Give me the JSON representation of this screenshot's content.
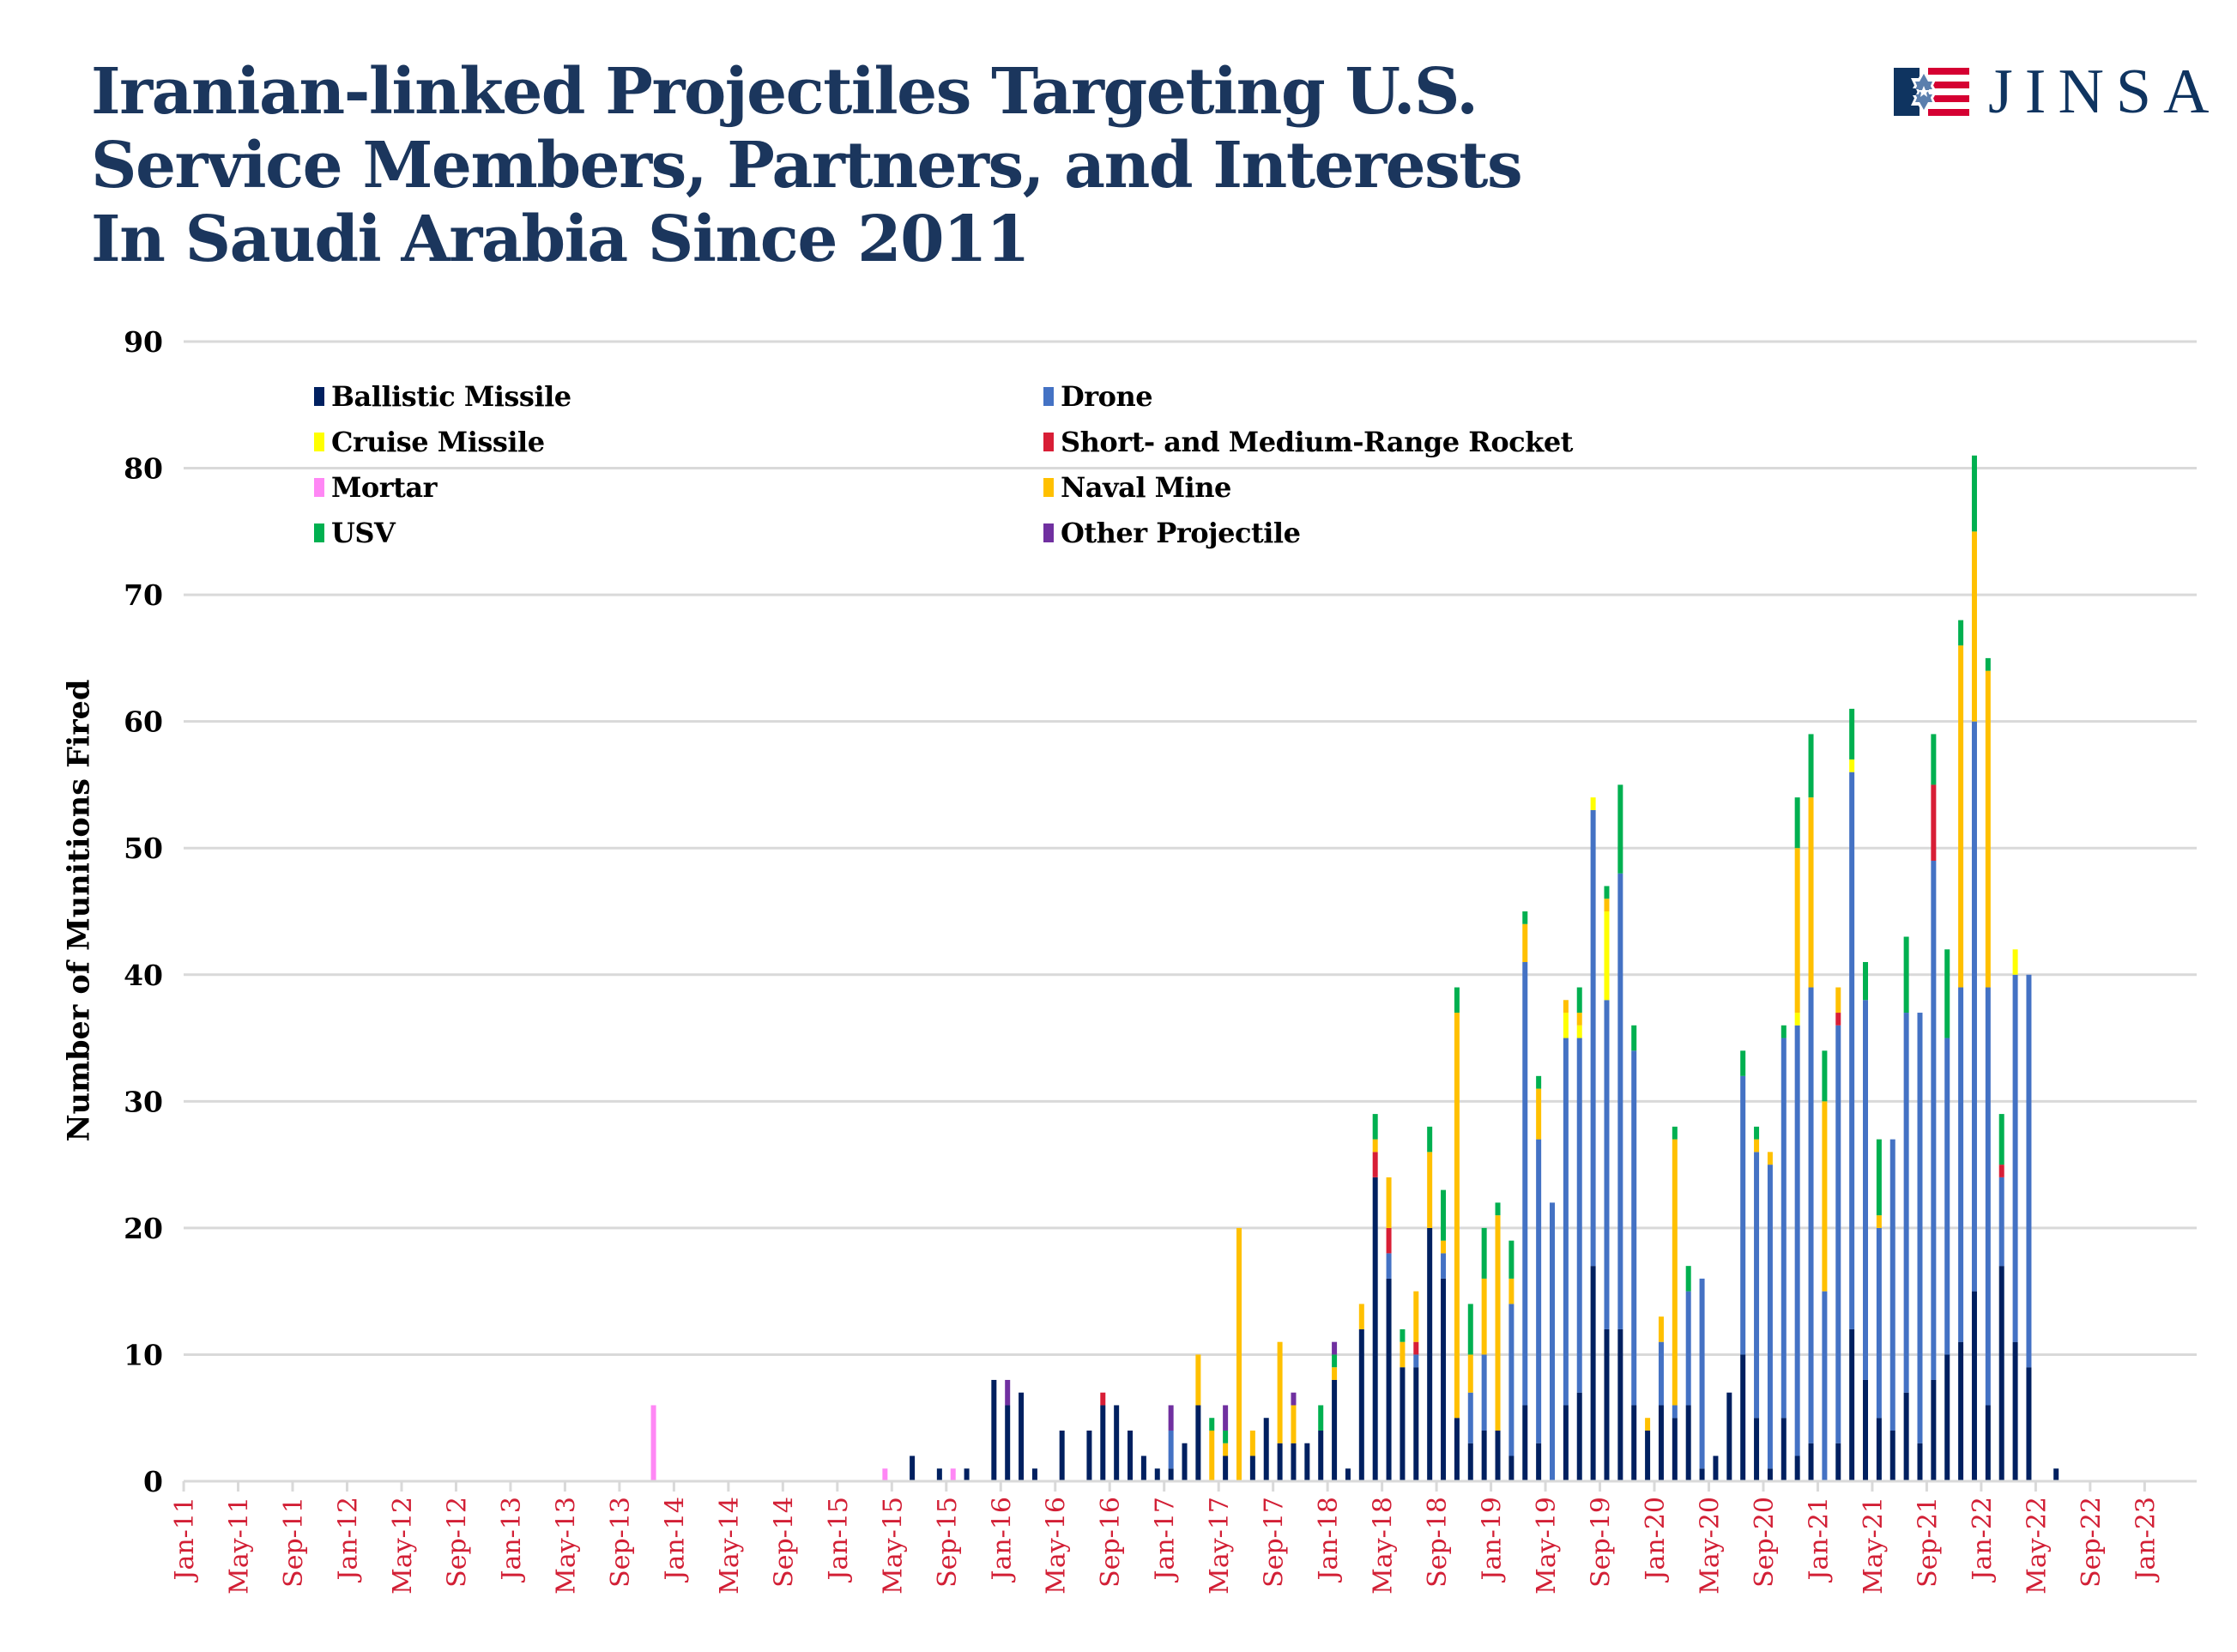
{
  "title_lines": [
    "Iranian-linked Projectiles Targeting U.S.",
    "Service Members, Partners, and Interests",
    "In Saudi Arabia Since 2011"
  ],
  "logo": {
    "text": "JINSA",
    "colors": {
      "navy": "#0f3460",
      "red": "#d50032",
      "star": "#5b7fad"
    }
  },
  "chart_data": {
    "type": "bar",
    "stacked": true,
    "title": "Iranian-linked Projectiles Targeting U.S. Service Members, Partners, and Interests In Saudi Arabia Since 2011",
    "xlabel": "",
    "ylabel": "Number of Munitions Fired",
    "ylim": [
      0,
      90
    ],
    "y_ticks": [
      "0",
      "10",
      "20",
      "30",
      "40",
      "50",
      "60",
      "70",
      "80",
      "90"
    ],
    "grid": true,
    "legend_position": "top-left",
    "x_range": [
      "Jan-11",
      "Jan-23"
    ],
    "x_tick_labels": [
      "Jan-11",
      "May-11",
      "Sep-11",
      "Jan-12",
      "May-12",
      "Sep-12",
      "Jan-13",
      "May-13",
      "Sep-13",
      "Jan-14",
      "May-14",
      "Sep-14",
      "Jan-15",
      "May-15",
      "Sep-15",
      "Jan-16",
      "May-16",
      "Sep-16",
      "Jan-17",
      "May-17",
      "Sep-17",
      "Jan-18",
      "May-18",
      "Sep-18",
      "Jan-19",
      "May-19",
      "Sep-19",
      "Jan-20",
      "May-20",
      "Sep-20",
      "Jan-21",
      "May-21",
      "Sep-21",
      "Jan-22",
      "May-22",
      "Sep-22",
      "Jan-23"
    ],
    "x_tick_color": "#d21f35",
    "series": [
      {
        "name": "Ballistic Missile",
        "color": "#002060"
      },
      {
        "name": "Drone",
        "color": "#4472c4"
      },
      {
        "name": "Cruise Missile",
        "color": "#ffff00"
      },
      {
        "name": "Short- and Medium-Range Rocket",
        "color": "#d81e36"
      },
      {
        "name": "Mortar",
        "color": "#ff87f5"
      },
      {
        "name": "Naval Mine",
        "color": "#ffc000"
      },
      {
        "name": "USV",
        "color": "#00b050"
      },
      {
        "name": "Other Projectile",
        "color": "#7030a0"
      }
    ],
    "rows_columns": [
      "month",
      "Ballistic Missile",
      "Drone",
      "Cruise Missile",
      "Short- and Medium-Range Rocket",
      "Mortar",
      "Naval Mine",
      "USV",
      "Other Projectile"
    ],
    "rows": [
      [
        "Nov-13",
        0,
        0,
        0,
        0,
        6,
        0,
        0,
        0
      ],
      [
        "Apr-15",
        0,
        0,
        0,
        0,
        1,
        0,
        0,
        0
      ],
      [
        "Jun-15",
        2,
        0,
        0,
        0,
        0,
        0,
        0,
        0
      ],
      [
        "Aug-15",
        1,
        0,
        0,
        0,
        0,
        0,
        0,
        0
      ],
      [
        "Sep-15",
        0,
        0,
        0,
        0,
        1,
        0,
        0,
        0
      ],
      [
        "Oct-15",
        1,
        0,
        0,
        0,
        0,
        0,
        0,
        0
      ],
      [
        "Dec-15",
        8,
        0,
        0,
        0,
        0,
        0,
        0,
        0
      ],
      [
        "Jan-16",
        6,
        0,
        0,
        0,
        0,
        0,
        0,
        2
      ],
      [
        "Feb-16",
        7,
        0,
        0,
        0,
        0,
        0,
        0,
        0
      ],
      [
        "Mar-16",
        1,
        0,
        0,
        0,
        0,
        0,
        0,
        0
      ],
      [
        "May-16",
        4,
        0,
        0,
        0,
        0,
        0,
        0,
        0
      ],
      [
        "Jul-16",
        4,
        0,
        0,
        0,
        0,
        0,
        0,
        0
      ],
      [
        "Aug-16",
        6,
        0,
        0,
        1,
        0,
        0,
        0,
        0
      ],
      [
        "Sep-16",
        6,
        0,
        0,
        0,
        0,
        0,
        0,
        0
      ],
      [
        "Oct-16",
        4,
        0,
        0,
        0,
        0,
        0,
        0,
        0
      ],
      [
        "Nov-16",
        2,
        0,
        0,
        0,
        0,
        0,
        0,
        0
      ],
      [
        "Dec-16",
        1,
        0,
        0,
        0,
        0,
        0,
        0,
        0
      ],
      [
        "Jan-17",
        1,
        3,
        0,
        0,
        0,
        0,
        0,
        2
      ],
      [
        "Feb-17",
        3,
        0,
        0,
        0,
        0,
        0,
        0,
        0
      ],
      [
        "Mar-17",
        6,
        0,
        0,
        0,
        0,
        4,
        0,
        0
      ],
      [
        "Apr-17",
        0,
        0,
        0,
        0,
        0,
        4,
        1,
        0
      ],
      [
        "May-17",
        2,
        0,
        0,
        0,
        0,
        1,
        1,
        2
      ],
      [
        "Jun-17",
        0,
        0,
        0,
        0,
        0,
        20,
        0,
        0
      ],
      [
        "Jul-17",
        2,
        0,
        0,
        0,
        0,
        2,
        0,
        0
      ],
      [
        "Aug-17",
        5,
        0,
        0,
        0,
        0,
        0,
        0,
        0
      ],
      [
        "Sep-17",
        3,
        0,
        0,
        0,
        0,
        8,
        0,
        0
      ],
      [
        "Oct-17",
        3,
        0,
        0,
        0,
        0,
        3,
        0,
        1
      ],
      [
        "Nov-17",
        3,
        0,
        0,
        0,
        0,
        0,
        0,
        0
      ],
      [
        "Dec-17",
        4,
        0,
        0,
        0,
        0,
        0,
        2,
        0
      ],
      [
        "Jan-18",
        8,
        0,
        0,
        0,
        0,
        1,
        1,
        1
      ],
      [
        "Feb-18",
        1,
        0,
        0,
        0,
        0,
        0,
        0,
        0
      ],
      [
        "Mar-18",
        12,
        0,
        0,
        0,
        0,
        2,
        0,
        0
      ],
      [
        "Apr-18",
        24,
        0,
        0,
        2,
        0,
        1,
        2,
        0
      ],
      [
        "May-18",
        16,
        2,
        0,
        2,
        0,
        4,
        0,
        0
      ],
      [
        "Jun-18",
        9,
        0,
        0,
        0,
        0,
        2,
        1,
        0
      ],
      [
        "Jul-18",
        9,
        1,
        0,
        1,
        0,
        4,
        0,
        0
      ],
      [
        "Aug-18",
        20,
        0,
        0,
        0,
        0,
        6,
        2,
        0
      ],
      [
        "Sep-18",
        16,
        2,
        0,
        0,
        0,
        1,
        4,
        0
      ],
      [
        "Oct-18",
        5,
        0,
        0,
        0,
        0,
        32,
        2,
        0
      ],
      [
        "Nov-18",
        3,
        4,
        0,
        0,
        0,
        3,
        4,
        0
      ],
      [
        "Dec-18",
        4,
        6,
        0,
        0,
        0,
        6,
        4,
        0
      ],
      [
        "Jan-19",
        4,
        0,
        0,
        0,
        0,
        17,
        1,
        0
      ],
      [
        "Feb-19",
        2,
        12,
        0,
        0,
        0,
        2,
        3,
        0
      ],
      [
        "Mar-19",
        6,
        35,
        0,
        0,
        0,
        3,
        1,
        0
      ],
      [
        "Apr-19",
        3,
        24,
        0,
        0,
        0,
        4,
        1,
        0
      ],
      [
        "May-19",
        0,
        22,
        0,
        0,
        0,
        0,
        0,
        0
      ],
      [
        "Jun-19",
        6,
        29,
        2,
        0,
        0,
        1,
        0,
        0
      ],
      [
        "Jul-19",
        7,
        28,
        1,
        0,
        0,
        1,
        2,
        0
      ],
      [
        "Aug-19",
        17,
        36,
        1,
        0,
        0,
        0,
        0,
        0
      ],
      [
        "Sep-19",
        12,
        26,
        7,
        0,
        0,
        1,
        1,
        0
      ],
      [
        "Oct-19",
        12,
        36,
        0,
        0,
        0,
        0,
        7,
        0
      ],
      [
        "Nov-19",
        6,
        28,
        0,
        0,
        0,
        0,
        2,
        0
      ],
      [
        "Dec-19",
        4,
        0,
        0,
        0,
        0,
        1,
        0,
        0
      ],
      [
        "Jan-20",
        6,
        5,
        0,
        0,
        0,
        2,
        0,
        0
      ],
      [
        "Feb-20",
        5,
        1,
        0,
        0,
        0,
        21,
        1,
        0
      ],
      [
        "Mar-20",
        6,
        9,
        0,
        0,
        0,
        0,
        2,
        0
      ],
      [
        "Apr-20",
        1,
        15,
        0,
        0,
        0,
        0,
        0,
        0
      ],
      [
        "May-20",
        2,
        0,
        0,
        0,
        0,
        0,
        0,
        0
      ],
      [
        "Jun-20",
        7,
        0,
        0,
        0,
        0,
        0,
        0,
        0
      ],
      [
        "Jul-20",
        10,
        22,
        0,
        0,
        0,
        0,
        2,
        0
      ],
      [
        "Aug-20",
        5,
        21,
        0,
        0,
        0,
        1,
        1,
        0
      ],
      [
        "Sep-20",
        1,
        24,
        0,
        0,
        0,
        1,
        0,
        0
      ],
      [
        "Oct-20",
        5,
        30,
        0,
        0,
        0,
        0,
        1,
        0
      ],
      [
        "Nov-20",
        2,
        34,
        1,
        0,
        0,
        13,
        4,
        0
      ],
      [
        "Dec-20",
        3,
        36,
        0,
        0,
        0,
        15,
        5,
        0
      ],
      [
        "Jan-21",
        0,
        15,
        0,
        0,
        0,
        15,
        4,
        0
      ],
      [
        "Feb-21",
        3,
        33,
        0,
        1,
        0,
        2,
        0,
        0
      ],
      [
        "Mar-21",
        12,
        44,
        1,
        0,
        0,
        0,
        4,
        0
      ],
      [
        "Apr-21",
        8,
        30,
        0,
        0,
        0,
        0,
        3,
        0
      ],
      [
        "May-21",
        5,
        15,
        0,
        0,
        0,
        1,
        6,
        0
      ],
      [
        "Jun-21",
        4,
        23,
        0,
        0,
        0,
        0,
        0,
        0
      ],
      [
        "Jul-21",
        7,
        30,
        0,
        0,
        0,
        0,
        6,
        0
      ],
      [
        "Aug-21",
        3,
        34,
        0,
        0,
        0,
        0,
        0,
        0
      ],
      [
        "Sep-21",
        8,
        41,
        0,
        6,
        0,
        0,
        4,
        0
      ],
      [
        "Oct-21",
        10,
        25,
        0,
        0,
        0,
        0,
        7,
        0
      ],
      [
        "Nov-21",
        11,
        28,
        0,
        0,
        0,
        27,
        2,
        0
      ],
      [
        "Dec-21",
        15,
        45,
        0,
        0,
        0,
        15,
        6,
        0
      ],
      [
        "Jan-22",
        6,
        33,
        0,
        0,
        0,
        25,
        1,
        0
      ],
      [
        "Feb-22",
        17,
        7,
        0,
        1,
        0,
        0,
        4,
        0
      ],
      [
        "Mar-22",
        11,
        29,
        2,
        0,
        0,
        0,
        0,
        0
      ],
      [
        "Apr-22",
        9,
        31,
        0,
        0,
        0,
        0,
        0,
        0
      ],
      [
        "Jun-22",
        1,
        0,
        0,
        0,
        0,
        0,
        0,
        0
      ]
    ]
  }
}
